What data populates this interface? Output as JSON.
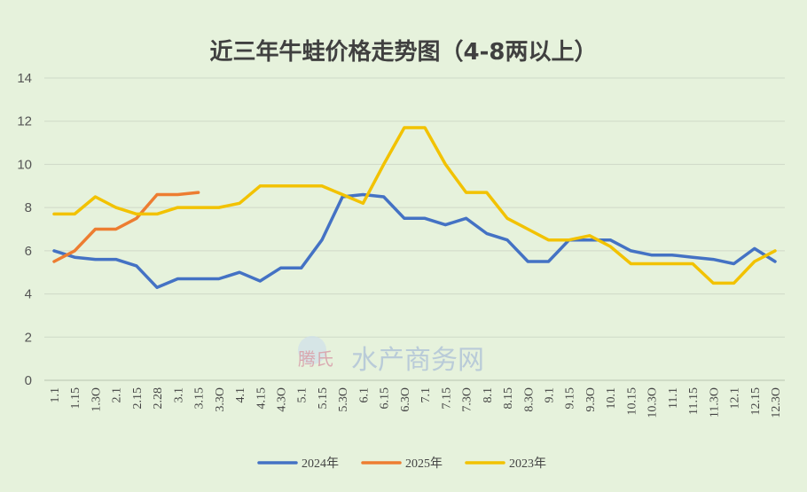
{
  "chart_data": {
    "type": "line",
    "title": "近三年牛蛙价格走势图（4-8两以上）",
    "x": [
      "1.1",
      "1.15",
      "1.3O",
      "2.1",
      "2.15",
      "2.28",
      "3.1",
      "3.15",
      "3.3O",
      "4.1",
      "4.15",
      "4.3O",
      "5.1",
      "5.15",
      "5.3O",
      "6.1",
      "6.15",
      "6.3O",
      "7.1",
      "7.15",
      "7.3O",
      "8.1",
      "8.15",
      "8.3O",
      "9.1",
      "9.15",
      "9.3O",
      "10.1",
      "10.15",
      "10.3O",
      "11.1",
      "11.15",
      "11.3O",
      "12.1",
      "12.15",
      "12.3O"
    ],
    "ylim": [
      0,
      14
    ],
    "yticks": [
      0,
      2,
      4,
      6,
      8,
      10,
      12,
      14
    ],
    "grid": true,
    "legend_position": "bottom",
    "series": [
      {
        "name": "2024年",
        "color": "#4472c4",
        "values": [
          6.0,
          5.7,
          5.6,
          5.6,
          5.3,
          4.3,
          4.7,
          4.7,
          4.7,
          5.0,
          4.6,
          5.2,
          5.2,
          6.5,
          8.5,
          8.6,
          8.5,
          7.5,
          7.5,
          7.2,
          7.5,
          6.8,
          6.5,
          5.5,
          5.5,
          6.5,
          6.5,
          6.5,
          6.0,
          5.8,
          5.8,
          5.7,
          5.6,
          5.4,
          6.1,
          5.5
        ]
      },
      {
        "name": "2025年",
        "color": "#ed7d31",
        "values": [
          5.5,
          6.0,
          7.0,
          7.0,
          7.5,
          8.6,
          8.6,
          8.7,
          null,
          null,
          null,
          null,
          null,
          null,
          null,
          null,
          null,
          null,
          null,
          null,
          null,
          null,
          null,
          null,
          null,
          null,
          null,
          null,
          null,
          null,
          null,
          null,
          null,
          null,
          null,
          null
        ]
      },
      {
        "name": "2023年",
        "color": "#f2c200",
        "values": [
          7.7,
          7.7,
          8.5,
          8.0,
          7.7,
          7.7,
          8.0,
          8.0,
          8.0,
          8.2,
          9.0,
          9.0,
          9.0,
          9.0,
          8.6,
          8.2,
          10.0,
          11.7,
          11.7,
          10.0,
          8.7,
          8.7,
          7.5,
          7.0,
          6.5,
          6.5,
          6.7,
          6.2,
          5.4,
          5.4,
          5.4,
          5.4,
          4.5,
          4.5,
          5.5,
          6.0
        ]
      }
    ]
  },
  "watermark": {
    "logo_text": "腾氏",
    "text": "水产商务网"
  }
}
